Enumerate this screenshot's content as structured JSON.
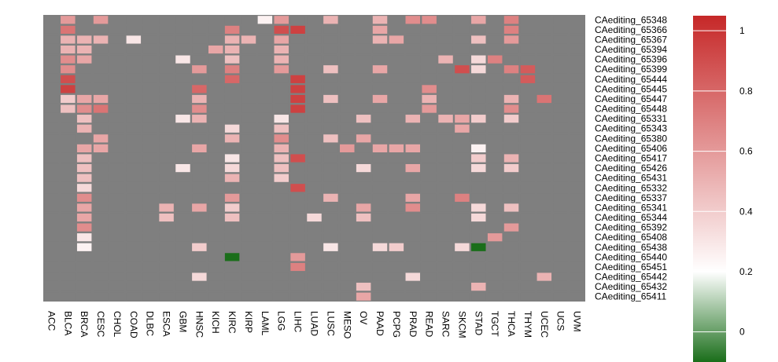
{
  "chart_data": {
    "type": "heatmap",
    "title": "",
    "colormap": {
      "low": "#1a6e1a",
      "mid": "#ffffff",
      "high": "#c62828",
      "na": "#7f7f7f",
      "range": [
        -0.1,
        1.05
      ],
      "mid_value": 0.2
    },
    "legend_ticks": [
      {
        "value": 1,
        "label": "1"
      },
      {
        "value": 0.8,
        "label": "0.8"
      },
      {
        "value": 0.6,
        "label": "0.6"
      },
      {
        "value": 0.4,
        "label": "0.4"
      },
      {
        "value": 0.2,
        "label": "0.2"
      },
      {
        "value": 0,
        "label": "0"
      }
    ],
    "columns": [
      "ACC",
      "BLCA",
      "BRCA",
      "CESC",
      "CHOL",
      "COAD",
      "DLBC",
      "ESCA",
      "GBM",
      "HNSC",
      "KICH",
      "KIRC",
      "KIRP",
      "LAML",
      "LGG",
      "LIHC",
      "LUAD",
      "LUSC",
      "MESO",
      "OV",
      "PAAD",
      "PCPG",
      "PRAD",
      "READ",
      "SARC",
      "SKCM",
      "STAD",
      "TGCT",
      "THCA",
      "THYM",
      "UCEC",
      "UCS",
      "UVM"
    ],
    "rows": [
      "CAediting_65348",
      "CAediting_65366",
      "CAediting_65367",
      "CAediting_65394",
      "CAediting_65396",
      "CAediting_65399",
      "CAediting_65444",
      "CAediting_65445",
      "CAediting_65447",
      "CAediting_65448",
      "CAediting_65331",
      "CAediting_65343",
      "CAediting_65380",
      "CAediting_65406",
      "CAediting_65417",
      "CAediting_65426",
      "CAediting_65431",
      "CAediting_65332",
      "CAediting_65337",
      "CAediting_65341",
      "CAediting_65344",
      "CAediting_65392",
      "CAediting_65408",
      "CAediting_65438",
      "CAediting_65440",
      "CAediting_65451",
      "CAediting_65442",
      "CAediting_65432",
      "CAediting_65411"
    ],
    "values": [
      [
        null,
        0.6,
        null,
        0.6,
        null,
        null,
        null,
        null,
        null,
        null,
        null,
        null,
        null,
        0.25,
        0.6,
        null,
        null,
        0.5,
        null,
        null,
        0.5,
        null,
        0.65,
        0.65,
        null,
        null,
        0.55,
        null,
        0.7,
        null,
        null,
        null,
        null
      ],
      [
        null,
        0.75,
        null,
        null,
        null,
        null,
        null,
        null,
        null,
        null,
        null,
        0.7,
        null,
        null,
        0.9,
        0.95,
        null,
        null,
        null,
        null,
        0.55,
        null,
        null,
        null,
        null,
        null,
        null,
        null,
        0.7,
        null,
        null,
        null,
        null
      ],
      [
        null,
        0.5,
        0.5,
        0.5,
        null,
        0.3,
        null,
        null,
        null,
        null,
        null,
        0.5,
        0.5,
        null,
        0.55,
        null,
        null,
        null,
        null,
        null,
        0.5,
        0.55,
        null,
        null,
        null,
        null,
        0.45,
        null,
        0.6,
        null,
        null,
        null,
        null
      ],
      [
        null,
        0.5,
        0.5,
        null,
        null,
        null,
        null,
        null,
        null,
        null,
        0.55,
        0.5,
        null,
        null,
        0.5,
        null,
        null,
        null,
        null,
        null,
        null,
        null,
        null,
        null,
        null,
        null,
        null,
        null,
        null,
        null,
        null,
        null,
        null
      ],
      [
        null,
        0.65,
        0.55,
        null,
        null,
        null,
        null,
        null,
        0.3,
        null,
        null,
        0.45,
        null,
        null,
        0.5,
        null,
        null,
        null,
        null,
        null,
        null,
        null,
        null,
        null,
        0.5,
        null,
        0.35,
        0.7,
        null,
        null,
        null,
        null,
        null
      ],
      [
        null,
        0.65,
        null,
        null,
        null,
        null,
        null,
        null,
        null,
        0.6,
        null,
        0.7,
        null,
        null,
        0.6,
        null,
        null,
        0.45,
        null,
        null,
        0.55,
        null,
        null,
        null,
        null,
        0.9,
        0.35,
        null,
        0.7,
        0.85,
        null,
        null,
        null
      ],
      [
        null,
        0.9,
        null,
        null,
        null,
        null,
        null,
        null,
        null,
        null,
        null,
        0.8,
        null,
        null,
        null,
        0.95,
        null,
        null,
        null,
        null,
        null,
        null,
        null,
        null,
        null,
        null,
        null,
        null,
        null,
        0.85,
        null,
        null,
        null
      ],
      [
        null,
        0.95,
        null,
        null,
        null,
        null,
        null,
        null,
        null,
        0.8,
        null,
        null,
        null,
        null,
        null,
        0.95,
        null,
        null,
        null,
        null,
        null,
        null,
        null,
        0.65,
        null,
        null,
        null,
        null,
        null,
        null,
        null,
        null,
        null
      ],
      [
        null,
        0.4,
        0.55,
        0.55,
        null,
        null,
        null,
        null,
        null,
        0.5,
        null,
        null,
        null,
        null,
        null,
        0.95,
        null,
        0.45,
        null,
        null,
        0.55,
        null,
        null,
        0.5,
        null,
        null,
        null,
        null,
        0.5,
        null,
        0.75,
        null,
        null
      ],
      [
        null,
        0.45,
        0.65,
        0.75,
        null,
        null,
        null,
        null,
        null,
        0.65,
        null,
        null,
        null,
        null,
        null,
        0.95,
        null,
        null,
        null,
        null,
        null,
        null,
        null,
        0.6,
        null,
        null,
        null,
        null,
        0.65,
        null,
        null,
        null,
        null
      ],
      [
        null,
        null,
        0.45,
        null,
        null,
        null,
        null,
        null,
        0.3,
        0.5,
        null,
        null,
        null,
        null,
        0.3,
        null,
        null,
        null,
        null,
        0.45,
        null,
        null,
        0.5,
        null,
        0.5,
        0.55,
        0.4,
        null,
        0.4,
        null,
        null,
        null,
        null
      ],
      [
        null,
        null,
        0.5,
        null,
        null,
        null,
        null,
        null,
        null,
        null,
        null,
        0.35,
        null,
        null,
        0.45,
        null,
        null,
        null,
        null,
        null,
        null,
        null,
        null,
        null,
        null,
        0.55,
        null,
        null,
        null,
        null,
        null,
        null,
        null
      ],
      [
        null,
        null,
        null,
        0.55,
        null,
        null,
        null,
        null,
        null,
        null,
        null,
        0.5,
        null,
        null,
        0.65,
        null,
        null,
        0.45,
        null,
        0.55,
        null,
        null,
        null,
        null,
        null,
        null,
        null,
        null,
        null,
        null,
        null,
        null,
        null
      ],
      [
        null,
        null,
        0.55,
        0.55,
        null,
        null,
        null,
        null,
        null,
        0.55,
        null,
        null,
        null,
        null,
        0.5,
        null,
        null,
        null,
        0.6,
        null,
        0.55,
        0.55,
        0.55,
        null,
        null,
        null,
        0.25,
        null,
        null,
        null,
        null,
        null,
        null
      ],
      [
        null,
        null,
        0.45,
        null,
        null,
        null,
        null,
        null,
        null,
        null,
        null,
        0.3,
        null,
        null,
        0.45,
        0.9,
        null,
        null,
        null,
        null,
        null,
        null,
        null,
        null,
        null,
        null,
        0.4,
        null,
        0.5,
        null,
        null,
        null,
        null
      ],
      [
        null,
        null,
        0.45,
        null,
        null,
        null,
        null,
        null,
        0.3,
        null,
        null,
        0.35,
        null,
        null,
        0.45,
        null,
        null,
        null,
        null,
        0.35,
        null,
        null,
        0.55,
        null,
        null,
        null,
        0.35,
        null,
        0.4,
        null,
        null,
        null,
        null
      ],
      [
        null,
        null,
        0.45,
        null,
        null,
        null,
        null,
        null,
        null,
        null,
        null,
        0.5,
        null,
        null,
        0.4,
        null,
        null,
        null,
        null,
        null,
        null,
        null,
        null,
        null,
        null,
        null,
        null,
        null,
        null,
        null,
        null,
        null,
        null
      ],
      [
        null,
        null,
        0.35,
        null,
        null,
        null,
        null,
        null,
        null,
        null,
        null,
        null,
        null,
        null,
        null,
        0.9,
        null,
        null,
        null,
        null,
        null,
        null,
        null,
        null,
        null,
        null,
        null,
        null,
        null,
        null,
        null,
        null,
        null
      ],
      [
        null,
        null,
        0.65,
        null,
        null,
        null,
        null,
        null,
        null,
        null,
        null,
        0.6,
        null,
        null,
        null,
        null,
        null,
        0.5,
        null,
        null,
        null,
        null,
        0.55,
        null,
        null,
        0.7,
        null,
        null,
        null,
        null,
        null,
        null,
        null
      ],
      [
        null,
        null,
        0.55,
        null,
        null,
        null,
        null,
        0.5,
        null,
        0.55,
        null,
        0.4,
        null,
        null,
        null,
        null,
        null,
        null,
        null,
        0.55,
        null,
        null,
        0.65,
        null,
        null,
        null,
        0.35,
        null,
        0.45,
        null,
        null,
        null,
        null
      ],
      [
        null,
        null,
        0.55,
        null,
        null,
        null,
        null,
        0.45,
        null,
        null,
        null,
        0.45,
        null,
        null,
        null,
        null,
        0.35,
        null,
        null,
        0.45,
        null,
        null,
        null,
        null,
        null,
        null,
        0.35,
        null,
        null,
        null,
        null,
        null,
        null
      ],
      [
        null,
        null,
        0.65,
        null,
        null,
        null,
        null,
        null,
        null,
        null,
        null,
        null,
        null,
        null,
        null,
        null,
        null,
        null,
        null,
        null,
        null,
        null,
        null,
        null,
        null,
        null,
        null,
        null,
        0.6,
        null,
        null,
        null,
        null
      ],
      [
        null,
        null,
        0.3,
        null,
        null,
        null,
        null,
        null,
        null,
        null,
        null,
        null,
        null,
        null,
        null,
        null,
        null,
        null,
        null,
        null,
        null,
        null,
        null,
        null,
        null,
        null,
        null,
        0.6,
        null,
        null,
        null,
        null,
        null
      ],
      [
        null,
        null,
        0.25,
        null,
        null,
        null,
        null,
        null,
        null,
        0.4,
        null,
        null,
        null,
        null,
        null,
        null,
        null,
        0.3,
        null,
        null,
        0.35,
        0.4,
        null,
        null,
        null,
        0.35,
        -0.1,
        null,
        null,
        null,
        null,
        null,
        null
      ],
      [
        null,
        null,
        null,
        null,
        null,
        null,
        null,
        null,
        null,
        null,
        null,
        -0.1,
        null,
        null,
        null,
        0.6,
        null,
        null,
        null,
        null,
        null,
        null,
        null,
        null,
        null,
        null,
        null,
        null,
        null,
        null,
        null,
        null,
        null
      ],
      [
        null,
        null,
        null,
        null,
        null,
        null,
        null,
        null,
        null,
        null,
        null,
        null,
        null,
        null,
        null,
        0.7,
        null,
        null,
        null,
        null,
        null,
        null,
        null,
        null,
        null,
        null,
        null,
        null,
        null,
        null,
        null,
        null,
        null
      ],
      [
        null,
        null,
        null,
        null,
        null,
        null,
        null,
        null,
        null,
        0.35,
        null,
        null,
        null,
        null,
        null,
        null,
        null,
        null,
        null,
        null,
        null,
        null,
        0.35,
        null,
        null,
        null,
        null,
        null,
        null,
        null,
        0.5,
        null,
        null
      ],
      [
        null,
        null,
        null,
        null,
        null,
        null,
        null,
        null,
        null,
        null,
        null,
        null,
        null,
        null,
        null,
        null,
        null,
        null,
        null,
        0.45,
        null,
        null,
        null,
        null,
        null,
        null,
        0.5,
        null,
        null,
        null,
        null,
        null,
        null
      ],
      [
        null,
        null,
        null,
        null,
        null,
        null,
        null,
        null,
        null,
        null,
        null,
        null,
        null,
        null,
        null,
        null,
        null,
        null,
        null,
        0.55,
        null,
        null,
        null,
        null,
        null,
        null,
        null,
        null,
        null,
        null,
        null,
        null,
        null
      ]
    ]
  }
}
